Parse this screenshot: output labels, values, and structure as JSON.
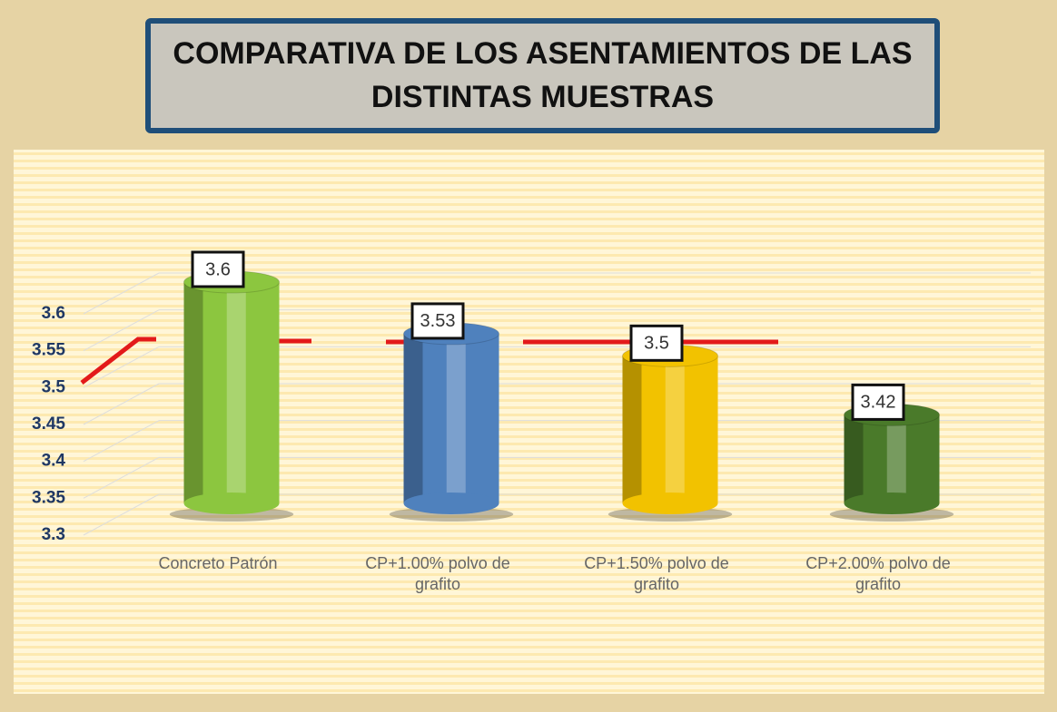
{
  "chart_data": {
    "type": "bar",
    "title": "COMPARATIVA DE LOS ASENTAMIENTOS DE LAS DISTINTAS  MUESTRAS",
    "categories": [
      "Concreto Patrón",
      "CP+1.00% polvo de grafito",
      "CP+1.50% polvo de grafito",
      "CP+2.00% polvo de grafito"
    ],
    "values": [
      3.6,
      3.53,
      3.5,
      3.42
    ],
    "colors": [
      "#8cc63f",
      "#4f81bd",
      "#f2c200",
      "#4a7a2a"
    ],
    "ylim": [
      3.3,
      3.6
    ],
    "yticks": [
      3.3,
      3.35,
      3.4,
      3.45,
      3.5,
      3.55,
      3.6
    ],
    "grid": true
  }
}
